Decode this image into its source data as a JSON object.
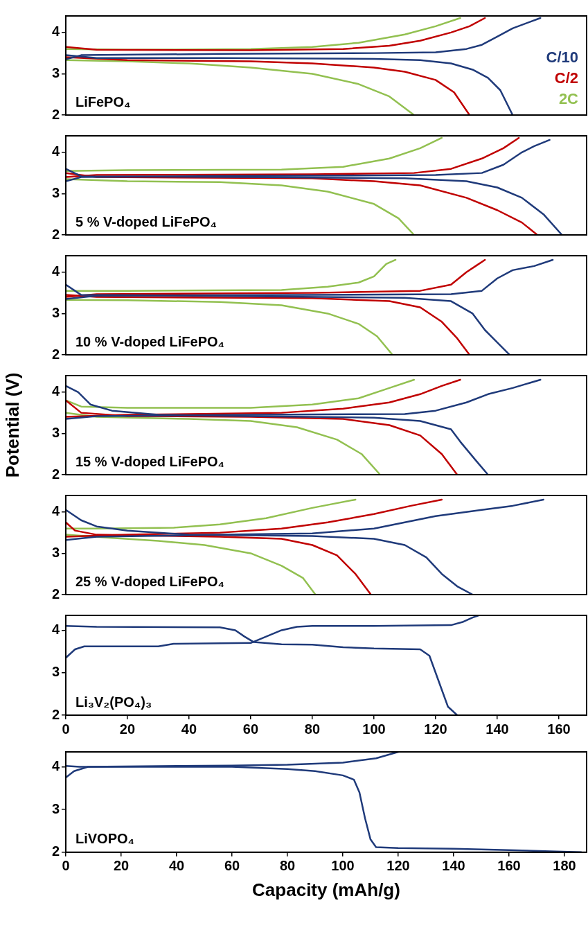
{
  "chart_data": [
    {
      "type": "line",
      "xlim": [
        0,
        169
      ],
      "ylim": [
        2,
        4.4
      ],
      "yticks": [
        2,
        3,
        4
      ],
      "tick_labels": "y",
      "marker": "none",
      "line_style": "solid",
      "legend": "bottom right",
      "annotations": [
        "LiFePO₄"
      ],
      "series": [
        {
          "name": "C/10",
          "color": "#1f3a7a",
          "x": [
            0,
            10,
            50,
            100,
            115,
            125,
            132,
            137,
            141,
            145
          ],
          "values": [
            3.45,
            3.38,
            3.38,
            3.36,
            3.33,
            3.25,
            3.1,
            2.9,
            2.6,
            2.0
          ]
        },
        {
          "color": "#1f3a7a",
          "x": [
            0,
            5,
            50,
            100,
            120,
            130,
            135,
            140,
            145,
            154
          ],
          "values": [
            3.35,
            3.45,
            3.48,
            3.5,
            3.52,
            3.6,
            3.7,
            3.9,
            4.1,
            4.35
          ]
        },
        {
          "name": "C/2",
          "color": "#c00000",
          "x": [
            0,
            20,
            60,
            80,
            100,
            110,
            120,
            126,
            131
          ],
          "values": [
            3.4,
            3.33,
            3.3,
            3.25,
            3.15,
            3.05,
            2.85,
            2.55,
            2.0
          ]
        },
        {
          "color": "#c00000",
          "x": [
            0,
            10,
            60,
            90,
            105,
            115,
            125,
            131,
            136
          ],
          "values": [
            3.65,
            3.58,
            3.57,
            3.6,
            3.68,
            3.8,
            4.0,
            4.15,
            4.35
          ]
        },
        {
          "name": "2C",
          "color": "#92c050",
          "x": [
            0,
            20,
            40,
            60,
            80,
            95,
            105,
            113
          ],
          "values": [
            3.33,
            3.3,
            3.25,
            3.15,
            3.0,
            2.75,
            2.45,
            2.0
          ]
        },
        {
          "color": "#92c050",
          "x": [
            0,
            20,
            60,
            80,
            95,
            110,
            120,
            128
          ],
          "values": [
            3.6,
            3.58,
            3.6,
            3.65,
            3.75,
            3.95,
            4.15,
            4.35
          ]
        }
      ]
    },
    {
      "type": "line",
      "xlim": [
        0,
        169
      ],
      "ylim": [
        2,
        4.4
      ],
      "yticks": [
        2,
        3,
        4
      ],
      "tick_labels": "y",
      "marker": "none",
      "line_style": "solid",
      "annotations": [
        "5 % V-doped LiFePO₄"
      ],
      "series": [
        {
          "color": "#1f3a7a",
          "x": [
            0,
            5,
            60,
            110,
            130,
            140,
            148,
            155,
            161
          ],
          "values": [
            3.6,
            3.42,
            3.4,
            3.37,
            3.3,
            3.15,
            2.9,
            2.5,
            2.0
          ]
        },
        {
          "color": "#1f3a7a",
          "x": [
            0,
            5,
            60,
            120,
            135,
            142,
            148,
            152,
            157
          ],
          "values": [
            3.3,
            3.4,
            3.43,
            3.45,
            3.5,
            3.7,
            4.0,
            4.15,
            4.3
          ]
        },
        {
          "color": "#c00000",
          "x": [
            0,
            10,
            80,
            100,
            115,
            130,
            140,
            148,
            153
          ],
          "values": [
            3.5,
            3.4,
            3.37,
            3.3,
            3.2,
            2.9,
            2.6,
            2.3,
            2.0
          ]
        },
        {
          "color": "#c00000",
          "x": [
            0,
            10,
            80,
            113,
            125,
            135,
            142,
            147
          ],
          "values": [
            3.4,
            3.45,
            3.47,
            3.5,
            3.6,
            3.85,
            4.1,
            4.35
          ]
        },
        {
          "color": "#92c050",
          "x": [
            0,
            20,
            50,
            70,
            85,
            100,
            108,
            113
          ],
          "values": [
            3.35,
            3.3,
            3.28,
            3.2,
            3.05,
            2.75,
            2.4,
            2.0
          ]
        },
        {
          "color": "#92c050",
          "x": [
            0,
            20,
            70,
            90,
            105,
            115,
            122
          ],
          "values": [
            3.55,
            3.57,
            3.58,
            3.65,
            3.85,
            4.1,
            4.35
          ]
        }
      ]
    },
    {
      "type": "line",
      "xlim": [
        0,
        169
      ],
      "ylim": [
        2,
        4.4
      ],
      "yticks": [
        2,
        3,
        4
      ],
      "tick_labels": "y",
      "marker": "none",
      "line_style": "solid",
      "annotations": [
        "10 % V-doped LiFePO₄"
      ],
      "series": [
        {
          "color": "#1f3a7a",
          "x": [
            0,
            5,
            60,
            110,
            125,
            132,
            136,
            140,
            144
          ],
          "values": [
            3.7,
            3.45,
            3.42,
            3.38,
            3.3,
            3.0,
            2.6,
            2.3,
            2.0
          ]
        },
        {
          "color": "#1f3a7a",
          "x": [
            0,
            10,
            80,
            125,
            135,
            140,
            145,
            152,
            158
          ],
          "values": [
            3.35,
            3.43,
            3.45,
            3.47,
            3.55,
            3.85,
            4.05,
            4.15,
            4.3
          ]
        },
        {
          "color": "#c00000",
          "x": [
            0,
            10,
            80,
            105,
            115,
            122,
            127,
            131
          ],
          "values": [
            3.45,
            3.4,
            3.37,
            3.3,
            3.15,
            2.8,
            2.4,
            2.0
          ]
        },
        {
          "color": "#c00000",
          "x": [
            0,
            10,
            80,
            115,
            125,
            130,
            133,
            136
          ],
          "values": [
            3.4,
            3.47,
            3.5,
            3.55,
            3.7,
            4.0,
            4.15,
            4.3
          ]
        },
        {
          "color": "#92c050",
          "x": [
            0,
            20,
            50,
            70,
            85,
            95,
            101,
            106
          ],
          "values": [
            3.33,
            3.32,
            3.28,
            3.2,
            3.0,
            2.75,
            2.45,
            2.0
          ]
        },
        {
          "color": "#92c050",
          "x": [
            0,
            20,
            70,
            85,
            95,
            100,
            104,
            107
          ],
          "values": [
            3.55,
            3.55,
            3.57,
            3.65,
            3.75,
            3.9,
            4.2,
            4.3
          ]
        }
      ]
    },
    {
      "type": "line",
      "xlim": [
        0,
        169
      ],
      "ylim": [
        2,
        4.4
      ],
      "yticks": [
        2,
        3,
        4
      ],
      "tick_labels": "y",
      "marker": "none",
      "line_style": "solid",
      "ylabel": "Potential (V)",
      "annotations": [
        "15 % V-doped LiFePO₄"
      ],
      "series": [
        {
          "color": "#1f3a7a",
          "x": [
            0,
            4,
            8,
            15,
            30,
            60,
            100,
            115,
            125,
            128,
            133,
            137
          ],
          "values": [
            4.15,
            4.0,
            3.7,
            3.55,
            3.45,
            3.42,
            3.38,
            3.3,
            3.1,
            2.8,
            2.35,
            2.0
          ]
        },
        {
          "color": "#1f3a7a",
          "x": [
            0,
            10,
            60,
            110,
            120,
            130,
            137,
            145,
            154
          ],
          "values": [
            3.35,
            3.42,
            3.45,
            3.47,
            3.55,
            3.75,
            3.95,
            4.1,
            4.3
          ]
        },
        {
          "color": "#c00000",
          "x": [
            0,
            5,
            20,
            60,
            90,
            105,
            115,
            122,
            127
          ],
          "values": [
            3.8,
            3.5,
            3.42,
            3.4,
            3.35,
            3.2,
            2.95,
            2.5,
            2.0
          ]
        },
        {
          "color": "#c00000",
          "x": [
            0,
            20,
            70,
            90,
            105,
            115,
            122,
            128
          ],
          "values": [
            3.4,
            3.45,
            3.5,
            3.6,
            3.75,
            3.95,
            4.15,
            4.3
          ]
        },
        {
          "color": "#92c050",
          "x": [
            0,
            10,
            40,
            60,
            75,
            88,
            96,
            102
          ],
          "values": [
            3.5,
            3.4,
            3.35,
            3.3,
            3.15,
            2.85,
            2.5,
            2.0
          ]
        },
        {
          "color": "#92c050",
          "x": [
            0,
            5,
            20,
            60,
            80,
            95,
            105,
            113
          ],
          "values": [
            3.8,
            3.65,
            3.62,
            3.62,
            3.7,
            3.85,
            4.1,
            4.3
          ]
        }
      ]
    },
    {
      "type": "line",
      "xlim": [
        0,
        169
      ],
      "ylim": [
        2,
        4.4
      ],
      "yticks": [
        2,
        3,
        4
      ],
      "tick_labels": "y",
      "marker": "none",
      "line_style": "solid",
      "annotations": [
        "25 % V-doped LiFePO₄"
      ],
      "series": [
        {
          "color": "#1f3a7a",
          "x": [
            0,
            5,
            10,
            20,
            40,
            80,
            100,
            110,
            117,
            122,
            127,
            132
          ],
          "values": [
            4.05,
            3.8,
            3.65,
            3.55,
            3.45,
            3.42,
            3.35,
            3.2,
            2.9,
            2.5,
            2.2,
            2.0
          ]
        },
        {
          "color": "#1f3a7a",
          "x": [
            0,
            10,
            50,
            80,
            100,
            110,
            120,
            135,
            145,
            155
          ],
          "values": [
            3.32,
            3.4,
            3.45,
            3.48,
            3.6,
            3.75,
            3.9,
            4.05,
            4.15,
            4.3
          ]
        },
        {
          "color": "#c00000",
          "x": [
            0,
            3,
            10,
            50,
            70,
            80,
            88,
            94,
            99
          ],
          "values": [
            3.75,
            3.55,
            3.45,
            3.4,
            3.35,
            3.2,
            2.95,
            2.5,
            2.0
          ]
        },
        {
          "color": "#c00000",
          "x": [
            0,
            20,
            50,
            70,
            85,
            100,
            112,
            122
          ],
          "values": [
            3.4,
            3.45,
            3.5,
            3.6,
            3.75,
            3.95,
            4.15,
            4.3
          ]
        },
        {
          "color": "#92c050",
          "x": [
            0,
            15,
            30,
            45,
            60,
            70,
            77,
            81
          ],
          "values": [
            3.45,
            3.37,
            3.3,
            3.2,
            3.0,
            2.7,
            2.4,
            2.0
          ]
        },
        {
          "color": "#92c050",
          "x": [
            0,
            10,
            35,
            50,
            65,
            80,
            94
          ],
          "values": [
            3.6,
            3.6,
            3.62,
            3.7,
            3.85,
            4.1,
            4.3
          ]
        }
      ]
    },
    {
      "type": "line",
      "xlim": [
        0,
        169
      ],
      "xticks": [
        0,
        20,
        40,
        60,
        80,
        100,
        120,
        140,
        160
      ],
      "ylim": [
        2,
        4.35
      ],
      "yticks": [
        2,
        3,
        4
      ],
      "marker": "none",
      "line_style": "solid",
      "annotations": [
        "Li₃V₂(PO₄)₃"
      ],
      "series": [
        {
          "color": "#1f3a7a",
          "x": [
            0,
            10,
            50,
            55,
            58,
            61,
            70,
            80,
            90,
            100,
            115,
            118,
            120,
            122,
            124,
            127
          ],
          "values": [
            4.1,
            4.08,
            4.07,
            4.0,
            3.85,
            3.72,
            3.67,
            3.66,
            3.6,
            3.57,
            3.55,
            3.4,
            3.0,
            2.6,
            2.2,
            2.0
          ]
        },
        {
          "color": "#1f3a7a",
          "x": [
            0,
            3,
            6,
            30,
            35,
            60,
            65,
            70,
            75,
            80,
            100,
            125,
            129,
            132,
            134
          ],
          "values": [
            3.35,
            3.55,
            3.62,
            3.62,
            3.68,
            3.7,
            3.85,
            4.0,
            4.08,
            4.1,
            4.1,
            4.12,
            4.2,
            4.3,
            4.35
          ]
        }
      ]
    },
    {
      "type": "line",
      "xlim": [
        0,
        188
      ],
      "xticks": [
        0,
        20,
        40,
        60,
        80,
        100,
        120,
        140,
        160,
        180
      ],
      "ylim": [
        2,
        4.35
      ],
      "yticks": [
        2,
        3,
        4
      ],
      "marker": "none",
      "line_style": "solid",
      "xlabel": "Capacity (mAh/g)",
      "annotations": [
        "LiVOPO₄"
      ],
      "series": [
        {
          "color": "#1f3a7a",
          "x": [
            0,
            5,
            60,
            80,
            90,
            100,
            104,
            106,
            108,
            110,
            112,
            120,
            140,
            160,
            175,
            186
          ],
          "values": [
            4.02,
            4.0,
            4.0,
            3.95,
            3.9,
            3.8,
            3.7,
            3.4,
            2.8,
            2.3,
            2.12,
            2.1,
            2.08,
            2.05,
            2.02,
            2.0
          ]
        },
        {
          "color": "#1f3a7a",
          "x": [
            0,
            3,
            8,
            40,
            60,
            80,
            100,
            112,
            120
          ],
          "values": [
            3.75,
            3.9,
            4.0,
            4.02,
            4.03,
            4.05,
            4.1,
            4.2,
            4.35
          ]
        }
      ]
    }
  ]
}
